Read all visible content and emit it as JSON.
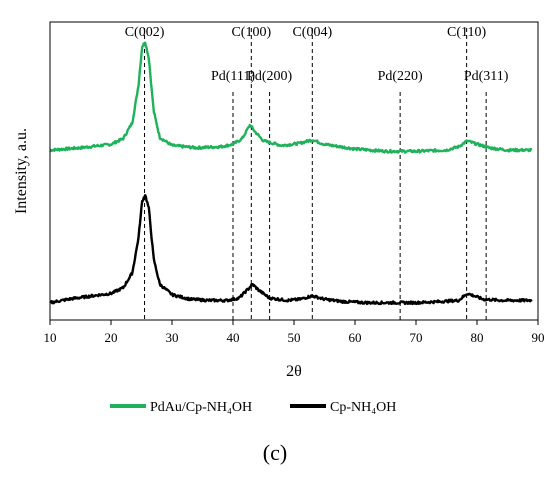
{
  "chart_data": {
    "type": "line",
    "title": "",
    "xlabel": "2θ",
    "ylabel": "Intensity, a.u.",
    "xlim": [
      10,
      90
    ],
    "xticks": [
      "10",
      "20",
      "30",
      "40",
      "50",
      "60",
      "70",
      "80",
      "90"
    ],
    "grid": false,
    "legend_position": "bottom",
    "reference_lines": [
      {
        "label": "C(002)",
        "x": 25.5,
        "row": "upper"
      },
      {
        "label": "C(100)",
        "x": 43.0,
        "row": "upper"
      },
      {
        "label": "C(004)",
        "x": 53.0,
        "row": "upper"
      },
      {
        "label": "C(110)",
        "x": 78.3,
        "row": "upper"
      },
      {
        "label": "Pd(111)",
        "x": 40.0,
        "row": "lower"
      },
      {
        "label": "Pd(200)",
        "x": 46.0,
        "row": "lower"
      },
      {
        "label": "Pd(220)",
        "x": 67.4,
        "row": "lower"
      },
      {
        "label": "Pd(311)",
        "x": 81.5,
        "row": "lower"
      }
    ],
    "series": [
      {
        "name": "PdAu/Cp-NH₄OH",
        "color": "#1fb25a",
        "points": [
          [
            10,
            6
          ],
          [
            15,
            8
          ],
          [
            20,
            11
          ],
          [
            22,
            16
          ],
          [
            23.5,
            30
          ],
          [
            24.5,
            62
          ],
          [
            25.1,
            96
          ],
          [
            25.6,
            100
          ],
          [
            26.2,
            86
          ],
          [
            27,
            40
          ],
          [
            28,
            17
          ],
          [
            30,
            10
          ],
          [
            34,
            8
          ],
          [
            38,
            9
          ],
          [
            40,
            11
          ],
          [
            41.5,
            16
          ],
          [
            42.8,
            28
          ],
          [
            43.6,
            22
          ],
          [
            45,
            14
          ],
          [
            48,
            10
          ],
          [
            51,
            12
          ],
          [
            53,
            15
          ],
          [
            55,
            11
          ],
          [
            60,
            7
          ],
          [
            65,
            5
          ],
          [
            70,
            5
          ],
          [
            75,
            6
          ],
          [
            77,
            9
          ],
          [
            78.4,
            14
          ],
          [
            79.5,
            12
          ],
          [
            82,
            8
          ],
          [
            85,
            6
          ],
          [
            89,
            6
          ]
        ]
      },
      {
        "name": "Cp-NH₄OH",
        "color": "#000000",
        "points": [
          [
            10,
            2
          ],
          [
            13,
            5
          ],
          [
            17,
            8
          ],
          [
            20,
            10
          ],
          [
            22,
            15
          ],
          [
            23.5,
            28
          ],
          [
            24.5,
            58
          ],
          [
            25.1,
            90
          ],
          [
            25.6,
            96
          ],
          [
            26.2,
            84
          ],
          [
            27,
            40
          ],
          [
            28,
            18
          ],
          [
            30,
            9
          ],
          [
            33,
            5
          ],
          [
            36,
            4
          ],
          [
            39,
            4
          ],
          [
            41,
            6
          ],
          [
            42.5,
            14
          ],
          [
            43.2,
            18
          ],
          [
            44.2,
            13
          ],
          [
            46,
            6
          ],
          [
            49,
            4
          ],
          [
            51,
            5
          ],
          [
            53,
            8
          ],
          [
            55,
            5
          ],
          [
            58,
            3
          ],
          [
            62,
            2
          ],
          [
            66,
            2
          ],
          [
            70,
            2
          ],
          [
            74,
            3
          ],
          [
            77,
            4
          ],
          [
            78.4,
            10
          ],
          [
            79.5,
            8
          ],
          [
            81,
            5
          ],
          [
            84,
            4
          ],
          [
            87,
            4
          ],
          [
            89,
            4
          ]
        ]
      }
    ]
  },
  "panel_label": "(c)"
}
